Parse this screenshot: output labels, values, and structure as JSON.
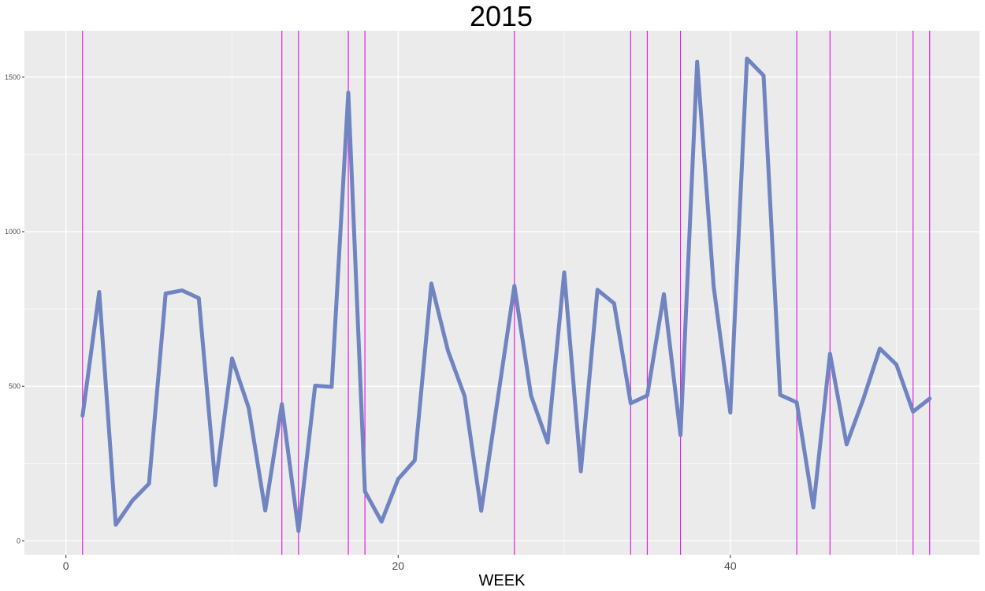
{
  "chart_data": {
    "type": "line",
    "title": "2015",
    "xlabel": "WEEK",
    "ylabel": "",
    "xlim": [
      -2.5,
      55
    ],
    "ylim": [
      -45,
      1650
    ],
    "x_ticks": [
      0,
      20,
      40
    ],
    "y_ticks": [
      0,
      500,
      1000,
      1500
    ],
    "grid": true,
    "panel_background": "#ebebeb",
    "colors": {
      "line": "#6f84c0",
      "vlines": "#e020e0",
      "grid": "#ffffff",
      "tick_text": "#4d4d4d"
    },
    "series": [
      {
        "x": [
          1,
          2,
          3,
          4,
          5,
          6,
          7,
          8,
          9,
          10,
          11,
          12,
          13,
          14,
          15,
          16,
          17,
          18,
          19,
          20,
          21,
          22,
          23,
          24,
          25,
          26,
          27,
          28,
          29,
          30,
          31,
          32,
          33,
          34,
          35,
          36,
          37,
          38,
          39,
          40,
          41,
          42,
          43,
          44,
          45,
          46,
          47,
          48,
          49,
          50,
          51,
          52
        ],
        "values": [
          405,
          805,
          52,
          130,
          185,
          800,
          810,
          785,
          180,
          590,
          430,
          98,
          442,
          32,
          502,
          498,
          1450,
          160,
          62,
          200,
          260,
          832,
          615,
          468,
          97,
          460,
          825,
          470,
          318,
          868,
          225,
          812,
          768,
          445,
          470,
          798,
          342,
          1550,
          822,
          415,
          1560,
          1505,
          472,
          448,
          108,
          605,
          312,
          458,
          622,
          570,
          418,
          460
        ]
      }
    ],
    "vlines_x": [
      1,
      13,
      14,
      17,
      18,
      27,
      34,
      35,
      37,
      44,
      46,
      51,
      52
    ]
  }
}
